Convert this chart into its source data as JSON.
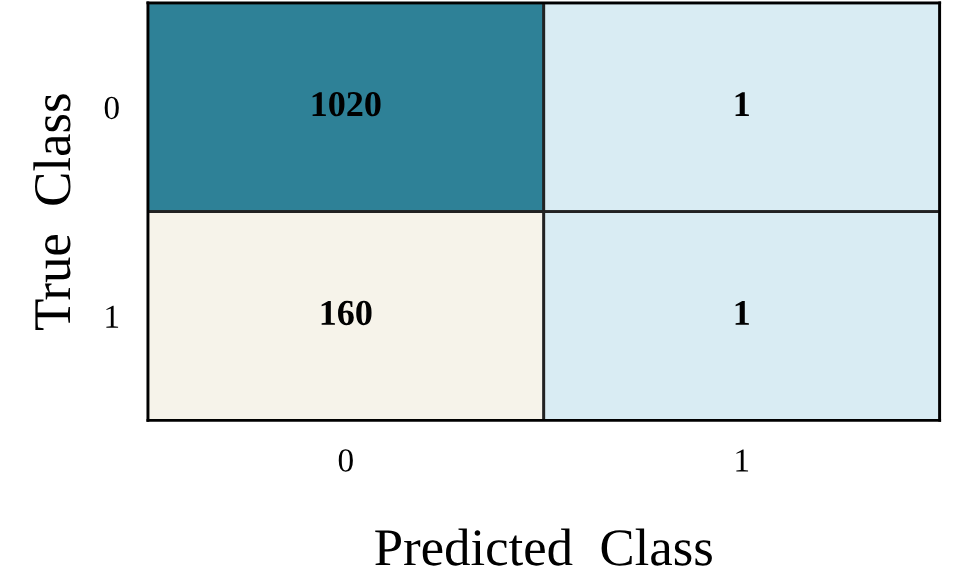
{
  "chart_data": {
    "type": "heatmap",
    "xlabel": "Predicted  Class",
    "ylabel": "True  Class",
    "categories": [
      "0",
      "1"
    ],
    "y_categories": [
      "0",
      "1"
    ],
    "cells": [
      [
        1020,
        1
      ],
      [
        160,
        1
      ]
    ],
    "colors": [
      [
        "#2e8197",
        "#d9ecf3"
      ],
      [
        "#f6f3ea",
        "#d9ecf3"
      ]
    ],
    "data_labels": true
  }
}
